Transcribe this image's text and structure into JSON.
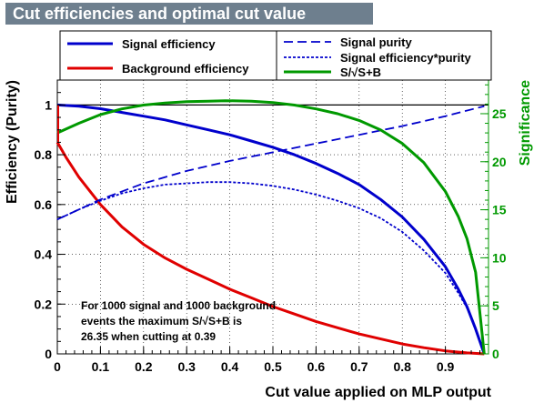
{
  "title": "Cut efficiencies and optimal cut value",
  "colors": {
    "signal": "#0000cc",
    "background": "#e00000",
    "significance": "#009900",
    "title_box": "#6e7f8e"
  },
  "chart_data": {
    "type": "line",
    "title": "Cut efficiencies and optimal cut value",
    "xlabel": "Cut value applied on MLP output",
    "ylabel": "Efficiency (Purity)",
    "y2label": "Significance",
    "xlim": [
      0,
      1
    ],
    "ylim": [
      0,
      1.1
    ],
    "y2lim": [
      0,
      28.5
    ],
    "xticks": [
      "0",
      "0.1",
      "0.2",
      "0.3",
      "0.4",
      "0.5",
      "0.6",
      "0.7",
      "0.8",
      "0.9"
    ],
    "yticks": [
      "0",
      "0.2",
      "0.4",
      "0.6",
      "0.8",
      "1"
    ],
    "y2ticks": [
      "0",
      "5",
      "10",
      "15",
      "20",
      "25"
    ],
    "grid": true,
    "legend_position": "top",
    "series": [
      {
        "name": "Signal efficiency",
        "axis": "left",
        "style": "solid",
        "color": "#0000cc",
        "x": [
          0,
          0.05,
          0.1,
          0.15,
          0.2,
          0.25,
          0.3,
          0.35,
          0.4,
          0.45,
          0.5,
          0.55,
          0.6,
          0.65,
          0.7,
          0.75,
          0.8,
          0.85,
          0.9,
          0.93,
          0.95,
          0.97,
          0.99
        ],
        "y": [
          1.0,
          0.995,
          0.985,
          0.97,
          0.955,
          0.94,
          0.92,
          0.9,
          0.88,
          0.855,
          0.83,
          0.8,
          0.765,
          0.725,
          0.68,
          0.62,
          0.55,
          0.46,
          0.35,
          0.26,
          0.19,
          0.1,
          0.0
        ]
      },
      {
        "name": "Background efficiency",
        "axis": "left",
        "style": "solid",
        "color": "#e00000",
        "x": [
          0,
          0.02,
          0.05,
          0.1,
          0.15,
          0.2,
          0.25,
          0.3,
          0.35,
          0.4,
          0.45,
          0.5,
          0.55,
          0.6,
          0.65,
          0.7,
          0.75,
          0.8,
          0.85,
          0.9,
          0.95,
          0.99
        ],
        "y": [
          0.85,
          0.79,
          0.71,
          0.6,
          0.51,
          0.44,
          0.385,
          0.34,
          0.3,
          0.26,
          0.225,
          0.19,
          0.16,
          0.13,
          0.105,
          0.08,
          0.06,
          0.04,
          0.025,
          0.012,
          0.004,
          0.0
        ]
      },
      {
        "name": "Signal purity",
        "axis": "left",
        "style": "dashed",
        "color": "#0000cc",
        "x": [
          0,
          0.05,
          0.1,
          0.2,
          0.3,
          0.4,
          0.5,
          0.6,
          0.7,
          0.8,
          0.9,
          0.99
        ],
        "y": [
          0.54,
          0.58,
          0.62,
          0.685,
          0.735,
          0.775,
          0.81,
          0.845,
          0.88,
          0.915,
          0.955,
          0.995
        ]
      },
      {
        "name": "Signal efficiency*purity",
        "axis": "left",
        "style": "dotted",
        "color": "#0000cc",
        "x": [
          0,
          0.05,
          0.1,
          0.15,
          0.2,
          0.25,
          0.3,
          0.35,
          0.4,
          0.45,
          0.5,
          0.55,
          0.6,
          0.65,
          0.7,
          0.75,
          0.8,
          0.85,
          0.9,
          0.93,
          0.95,
          0.97,
          0.99
        ],
        "y": [
          0.54,
          0.58,
          0.615,
          0.645,
          0.665,
          0.68,
          0.685,
          0.69,
          0.69,
          0.685,
          0.675,
          0.66,
          0.64,
          0.615,
          0.585,
          0.545,
          0.49,
          0.415,
          0.325,
          0.245,
          0.185,
          0.1,
          0.0
        ]
      },
      {
        "name": "S/√S+B",
        "axis": "right",
        "style": "solid",
        "color": "#009900",
        "x": [
          0,
          0.05,
          0.1,
          0.15,
          0.2,
          0.25,
          0.3,
          0.35,
          0.39,
          0.45,
          0.5,
          0.55,
          0.6,
          0.65,
          0.7,
          0.75,
          0.8,
          0.85,
          0.9,
          0.93,
          0.95,
          0.97,
          0.99
        ],
        "y": [
          23.0,
          24.0,
          24.9,
          25.5,
          25.9,
          26.1,
          26.25,
          26.3,
          26.35,
          26.3,
          26.15,
          25.9,
          25.5,
          25.0,
          24.3,
          23.3,
          21.9,
          19.9,
          16.9,
          14.3,
          12.0,
          8.5,
          0.0
        ]
      }
    ],
    "annotation": [
      "For 1000 signal and 1000 background",
      "events the maximum S/√S+B is",
      "26.35 when cutting at  0.39"
    ]
  }
}
